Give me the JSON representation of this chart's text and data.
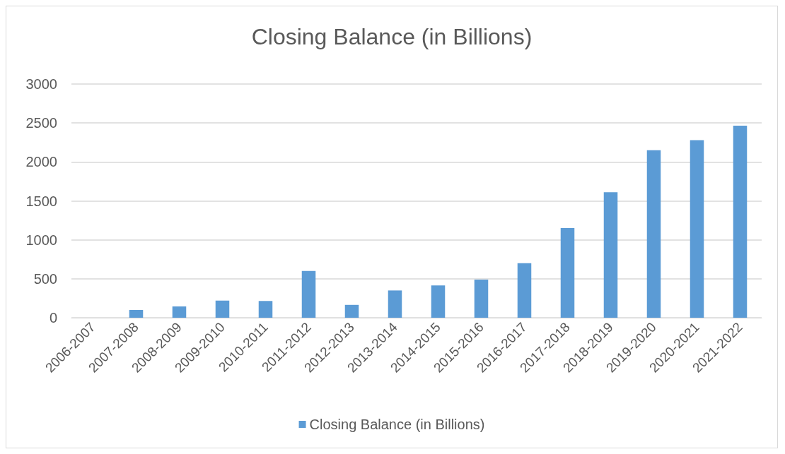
{
  "chart_data": {
    "type": "bar",
    "title": "Closing Balance (in Billions)",
    "categories": [
      "2006-2007",
      "2007-2008",
      "2008-2009",
      "2009-2010",
      "2010-2011",
      "2011-2012",
      "2012-2013",
      "2013-2014",
      "2014-2015",
      "2015-2016",
      "2016-2017",
      "2017-2018",
      "2018-2019",
      "2019-2020",
      "2020-2021",
      "2021-2022"
    ],
    "series": [
      {
        "name": "Closing Balance (in Billions)",
        "color": "#5b9bd5",
        "values": [
          0,
          100,
          145,
          220,
          215,
          600,
          165,
          350,
          415,
          490,
          700,
          1150,
          1610,
          2150,
          2280,
          2465
        ]
      }
    ],
    "ylim": [
      0,
      3000
    ],
    "yticks": [
      0,
      500,
      1000,
      1500,
      2000,
      2500,
      3000
    ],
    "grid": "y",
    "legend": "bottom"
  }
}
